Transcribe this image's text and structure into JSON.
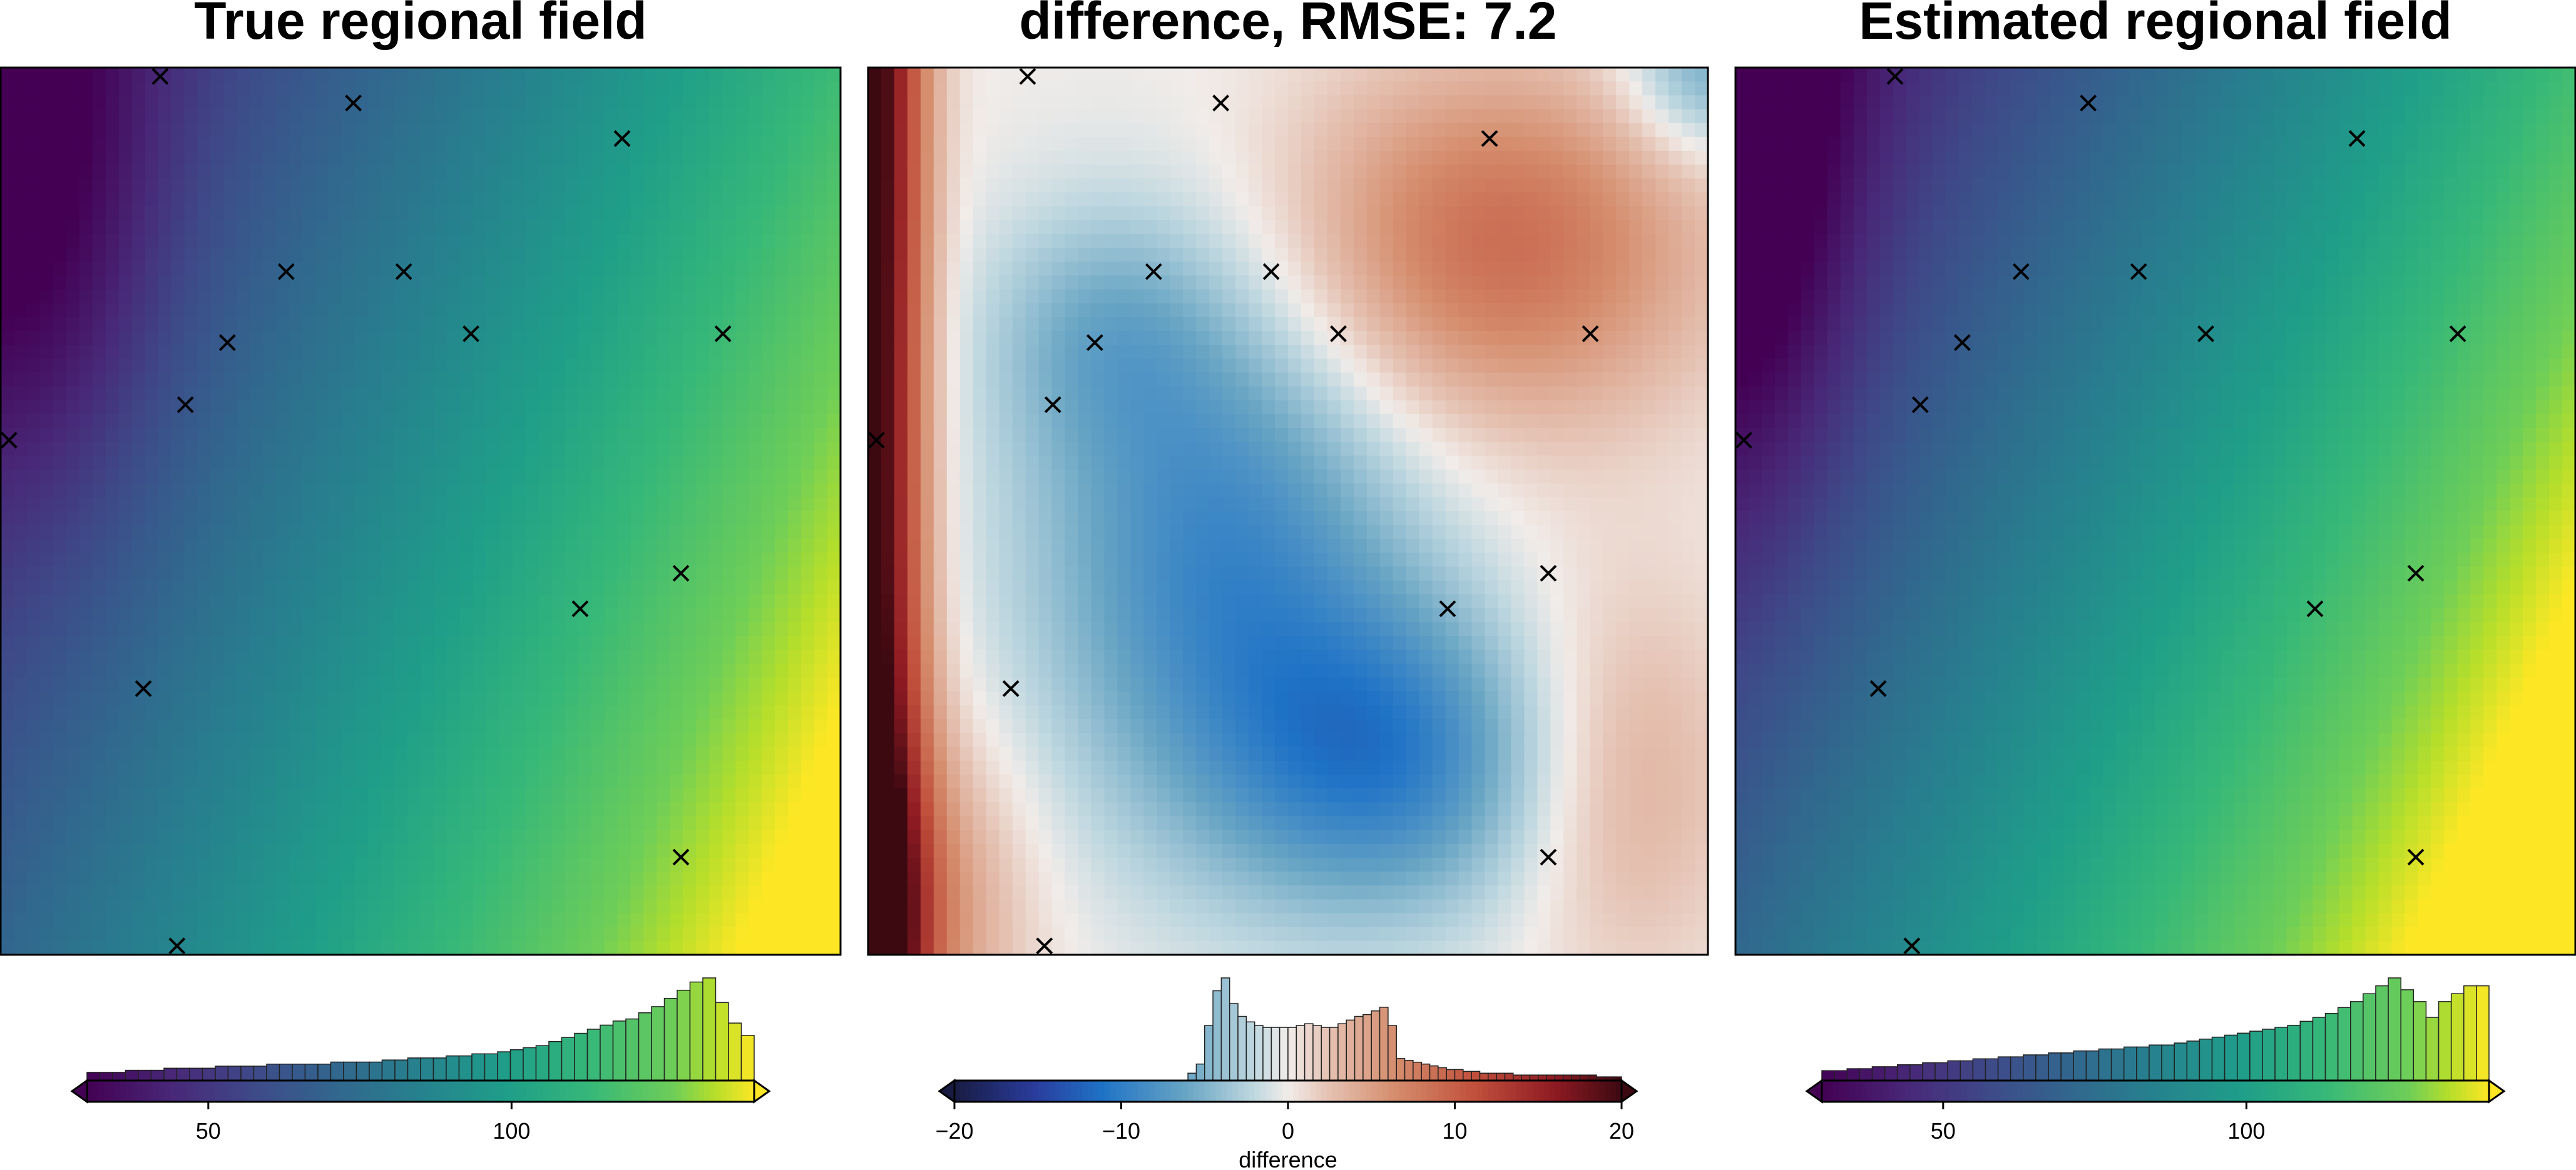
{
  "chart_data": [
    {
      "type": "heatmap",
      "title": "True regional field",
      "colormap": "viridis",
      "color_range": [
        30,
        140
      ],
      "colorbar": {
        "ticks": [
          50,
          100
        ],
        "label": "",
        "extend": "both"
      },
      "histogram": [
        4,
        4,
        4,
        5,
        5,
        5,
        6,
        6,
        6,
        6,
        7,
        7,
        7,
        7,
        8,
        8,
        8,
        8,
        8,
        9,
        9,
        9,
        9,
        10,
        10,
        11,
        11,
        11,
        12,
        12,
        13,
        13,
        14,
        15,
        16,
        17,
        19,
        21,
        23,
        25,
        27,
        29,
        30,
        33,
        36,
        40,
        44,
        48,
        50,
        38,
        28,
        22
      ],
      "points": [
        [
          0.19,
          0.01
        ],
        [
          0.42,
          0.04
        ],
        [
          0.74,
          0.08
        ],
        [
          0.34,
          0.23
        ],
        [
          0.48,
          0.23
        ],
        [
          0.27,
          0.31
        ],
        [
          0.56,
          0.3
        ],
        [
          0.86,
          0.3
        ],
        [
          0.22,
          0.38
        ],
        [
          0.01,
          0.42
        ],
        [
          0.81,
          0.57
        ],
        [
          0.69,
          0.61
        ],
        [
          0.17,
          0.7
        ],
        [
          0.81,
          0.89
        ],
        [
          0.21,
          0.99
        ]
      ]
    },
    {
      "type": "heatmap",
      "title": "difference, RMSE: 7.2",
      "colormap": "balance",
      "color_range": [
        -20,
        20
      ],
      "colorbar": {
        "ticks": [
          -20,
          -10,
          0,
          10,
          20
        ],
        "label": "difference",
        "extend": "both"
      },
      "histogram": [
        0,
        0,
        0,
        0,
        0,
        0,
        0,
        0,
        0,
        0,
        0,
        0,
        0,
        0,
        0,
        0,
        0,
        0,
        0,
        0,
        0,
        0,
        0,
        0,
        0,
        0,
        0,
        0,
        4,
        9,
        30,
        49,
        56,
        42,
        35,
        32,
        30,
        29,
        29,
        29,
        29,
        30,
        31,
        30,
        29,
        29,
        31,
        33,
        35,
        36,
        38,
        40,
        30,
        12,
        11,
        10,
        9,
        8,
        7,
        6,
        6,
        5,
        5,
        4,
        4,
        4,
        4,
        3,
        3,
        3,
        3,
        3,
        3,
        3,
        3,
        3,
        3,
        2,
        2,
        2
      ],
      "points": [
        [
          0.19,
          0.01
        ],
        [
          0.42,
          0.04
        ],
        [
          0.74,
          0.08
        ],
        [
          0.34,
          0.23
        ],
        [
          0.48,
          0.23
        ],
        [
          0.27,
          0.31
        ],
        [
          0.56,
          0.3
        ],
        [
          0.86,
          0.3
        ],
        [
          0.22,
          0.38
        ],
        [
          0.01,
          0.42
        ],
        [
          0.81,
          0.57
        ],
        [
          0.69,
          0.61
        ],
        [
          0.17,
          0.7
        ],
        [
          0.81,
          0.89
        ],
        [
          0.21,
          0.99
        ]
      ]
    },
    {
      "type": "heatmap",
      "title": "Estimated regional field",
      "colormap": "viridis",
      "color_range": [
        30,
        140
      ],
      "colorbar": {
        "ticks": [
          50,
          100
        ],
        "label": "",
        "extend": "both"
      },
      "histogram": [
        5,
        5,
        6,
        6,
        7,
        7,
        8,
        8,
        9,
        9,
        10,
        10,
        11,
        11,
        12,
        12,
        13,
        13,
        14,
        14,
        15,
        15,
        16,
        16,
        17,
        17,
        18,
        18,
        19,
        20,
        21,
        22,
        23,
        24,
        25,
        26,
        27,
        28,
        30,
        32,
        34,
        37,
        40,
        44,
        48,
        52,
        46,
        40,
        32,
        40,
        44,
        48,
        48
      ],
      "points": [
        [
          0.19,
          0.01
        ],
        [
          0.42,
          0.04
        ],
        [
          0.74,
          0.08
        ],
        [
          0.34,
          0.23
        ],
        [
          0.48,
          0.23
        ],
        [
          0.27,
          0.31
        ],
        [
          0.56,
          0.3
        ],
        [
          0.86,
          0.3
        ],
        [
          0.22,
          0.38
        ],
        [
          0.01,
          0.42
        ],
        [
          0.81,
          0.57
        ],
        [
          0.69,
          0.61
        ],
        [
          0.17,
          0.7
        ],
        [
          0.81,
          0.89
        ],
        [
          0.21,
          0.99
        ]
      ]
    }
  ]
}
